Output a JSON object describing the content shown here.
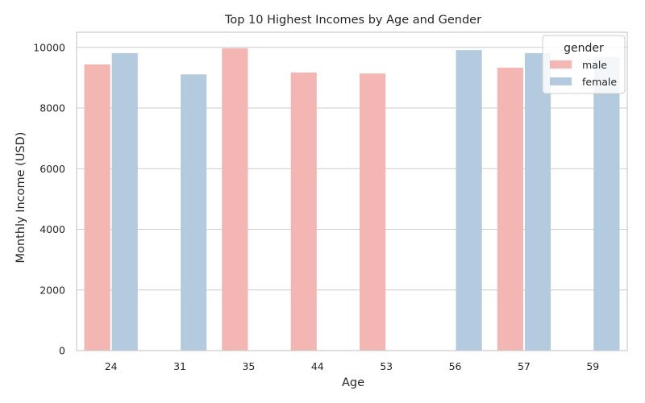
{
  "chart_data": {
    "type": "bar",
    "title": "Top 10 Highest Incomes by Age and Gender",
    "xlabel": "Age",
    "ylabel": "Monthly Income (USD)",
    "categories": [
      "24",
      "31",
      "35",
      "44",
      "53",
      "56",
      "57",
      "59"
    ],
    "ylim": [
      0,
      10500
    ],
    "yticks": [
      0,
      2000,
      4000,
      6000,
      8000,
      10000
    ],
    "grid": true,
    "legend": {
      "title": "gender",
      "position": "top-right"
    },
    "series": [
      {
        "name": "male",
        "color": "#f4b6b2",
        "values": [
          9440,
          null,
          9970,
          9170,
          9140,
          null,
          9330,
          null
        ]
      },
      {
        "name": "female",
        "color": "#b4cade",
        "values": [
          9810,
          9110,
          null,
          null,
          null,
          9910,
          9810,
          9690
        ]
      }
    ]
  }
}
